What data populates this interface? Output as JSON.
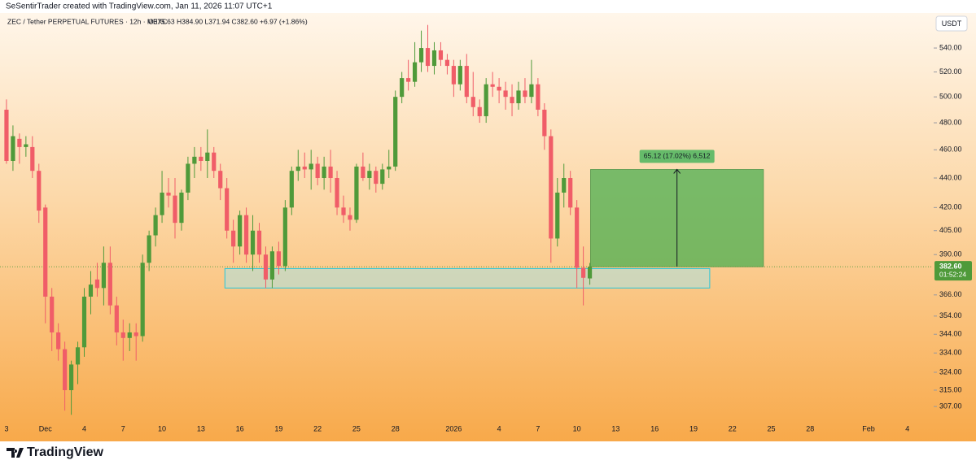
{
  "header": {
    "attribution": "SeSentirTrader created with TradingView.com, Jan 11, 2026 11:07 UTC+1",
    "symbol": "ZEC / Tether PERPETUAL FUTURES · 12h · MEXC",
    "ohlc": "O375.63 H384.90 L371.94 C382.60 +6.97 (+1.86%)"
  },
  "chart_data": {
    "type": "candlestick",
    "up_color": "#4f9a3a",
    "down_color": "#f05d68",
    "open": [
      490,
      452,
      468,
      462,
      462,
      445,
      420,
      365,
      345,
      336,
      315,
      328,
      337,
      365,
      375,
      370,
      385,
      360,
      345,
      342,
      345,
      343,
      385,
      402,
      415,
      430,
      428,
      410,
      430,
      450,
      455,
      452,
      458,
      445,
      433,
      405,
      395,
      415,
      390,
      405,
      390,
      375,
      392,
      383,
      420,
      445,
      448,
      446,
      450,
      440,
      448,
      440,
      420,
      415,
      412,
      448,
      440,
      445,
      436,
      446,
      448,
      500,
      515,
      512,
      528,
      540,
      525,
      538,
      530,
      525,
      510,
      525,
      500,
      492,
      485,
      510,
      508,
      505,
      500,
      495,
      505,
      500,
      510,
      490,
      470,
      400,
      430,
      440,
      420,
      382,
      375.63
    ],
    "high": [
      498,
      478,
      472,
      470,
      470,
      450,
      422,
      370,
      350,
      340,
      330,
      340,
      370,
      380,
      385,
      395,
      395,
      365,
      352,
      350,
      350,
      390,
      405,
      420,
      445,
      440,
      440,
      432,
      455,
      462,
      462,
      475,
      462,
      450,
      440,
      412,
      418,
      420,
      415,
      410,
      395,
      395,
      398,
      425,
      448,
      460,
      458,
      460,
      455,
      455,
      460,
      445,
      428,
      420,
      450,
      458,
      450,
      448,
      450,
      460,
      505,
      520,
      530,
      545,
      555,
      560,
      545,
      545,
      535,
      530,
      530,
      535,
      520,
      498,
      515,
      520,
      515,
      512,
      510,
      512,
      515,
      530,
      515,
      495,
      475,
      440,
      450,
      445,
      425,
      395,
      384.9
    ],
    "low": [
      450,
      445,
      450,
      455,
      440,
      410,
      350,
      335,
      330,
      305,
      303,
      318,
      332,
      355,
      365,
      360,
      355,
      338,
      330,
      335,
      330,
      340,
      380,
      395,
      410,
      420,
      400,
      405,
      425,
      440,
      445,
      440,
      440,
      425,
      400,
      385,
      390,
      385,
      380,
      385,
      370,
      370,
      378,
      380,
      415,
      438,
      440,
      432,
      435,
      432,
      430,
      415,
      410,
      405,
      410,
      438,
      432,
      430,
      432,
      440,
      445,
      495,
      505,
      508,
      520,
      520,
      518,
      525,
      518,
      500,
      505,
      495,
      485,
      480,
      480,
      500,
      495,
      490,
      485,
      490,
      495,
      495,
      485,
      460,
      385,
      395,
      420,
      415,
      370,
      360,
      371.94
    ],
    "close": [
      452,
      470,
      462,
      464,
      445,
      418,
      365,
      345,
      336,
      315,
      328,
      337,
      365,
      372,
      370,
      385,
      360,
      345,
      342,
      345,
      343,
      385,
      402,
      415,
      430,
      428,
      410,
      430,
      450,
      455,
      452,
      458,
      445,
      433,
      405,
      395,
      415,
      390,
      405,
      390,
      375,
      392,
      383,
      420,
      445,
      448,
      446,
      450,
      440,
      448,
      440,
      420,
      415,
      412,
      448,
      440,
      445,
      436,
      446,
      448,
      500,
      515,
      512,
      528,
      540,
      525,
      538,
      530,
      525,
      510,
      525,
      500,
      492,
      485,
      510,
      508,
      505,
      500,
      495,
      505,
      500,
      510,
      490,
      470,
      400,
      430,
      440,
      420,
      382,
      376,
      382.6
    ],
    "ylim": [
      301.2,
      567.7
    ],
    "log_scale": true,
    "yticks": [
      {
        "value": 540,
        "label": "540.00"
      },
      {
        "value": 520,
        "label": "520.00"
      },
      {
        "value": 500,
        "label": "500.00"
      },
      {
        "value": 480,
        "label": "480.00"
      },
      {
        "value": 460,
        "label": "460.00"
      },
      {
        "value": 440,
        "label": "440.00"
      },
      {
        "value": 420,
        "label": "420.00"
      },
      {
        "value": 405,
        "label": "405.00"
      },
      {
        "value": 390,
        "label": "390.00"
      },
      {
        "value": 366,
        "label": "366.00"
      },
      {
        "value": 354,
        "label": "354.00"
      },
      {
        "value": 344,
        "label": "344.00"
      },
      {
        "value": 334,
        "label": "334.00"
      },
      {
        "value": 324,
        "label": "324.00"
      },
      {
        "value": 315,
        "label": "315.00"
      },
      {
        "value": 307,
        "label": "307.00"
      }
    ],
    "xlim": [
      -1,
      142.8
    ],
    "xticks": [
      {
        "value": 0,
        "label": "3"
      },
      {
        "value": 6,
        "label": "Dec"
      },
      {
        "value": 12,
        "label": "4"
      },
      {
        "value": 18,
        "label": "7"
      },
      {
        "value": 24,
        "label": "10"
      },
      {
        "value": 30,
        "label": "13"
      },
      {
        "value": 36,
        "label": "16"
      },
      {
        "value": 42,
        "label": "19"
      },
      {
        "value": 48,
        "label": "22"
      },
      {
        "value": 54,
        "label": "25"
      },
      {
        "value": 60,
        "label": "28"
      },
      {
        "value": 69,
        "label": "2026"
      },
      {
        "value": 76,
        "label": "4"
      },
      {
        "value": 82,
        "label": "7"
      },
      {
        "value": 88,
        "label": "10"
      },
      {
        "value": 94,
        "label": "13"
      },
      {
        "value": 100,
        "label": "16"
      },
      {
        "value": 106,
        "label": "19"
      },
      {
        "value": 112,
        "label": "22"
      },
      {
        "value": 118,
        "label": "25"
      },
      {
        "value": 124,
        "label": "28"
      },
      {
        "value": 133,
        "label": "Feb"
      },
      {
        "value": 139,
        "label": "4"
      }
    ],
    "currency": "USDT",
    "last_price": {
      "value": 382.6,
      "label": "382.60"
    },
    "countdown": "01:52:24",
    "support_zone": {
      "x": [
        33.7,
        108.5
      ],
      "y": [
        370,
        381.5
      ]
    },
    "target_zone": {
      "x": [
        90.1,
        116.8
      ],
      "y": [
        382.6,
        446
      ],
      "label": "65.12 (17.02%) 6,512"
    }
  },
  "footer": {
    "brand": "TradingView"
  }
}
